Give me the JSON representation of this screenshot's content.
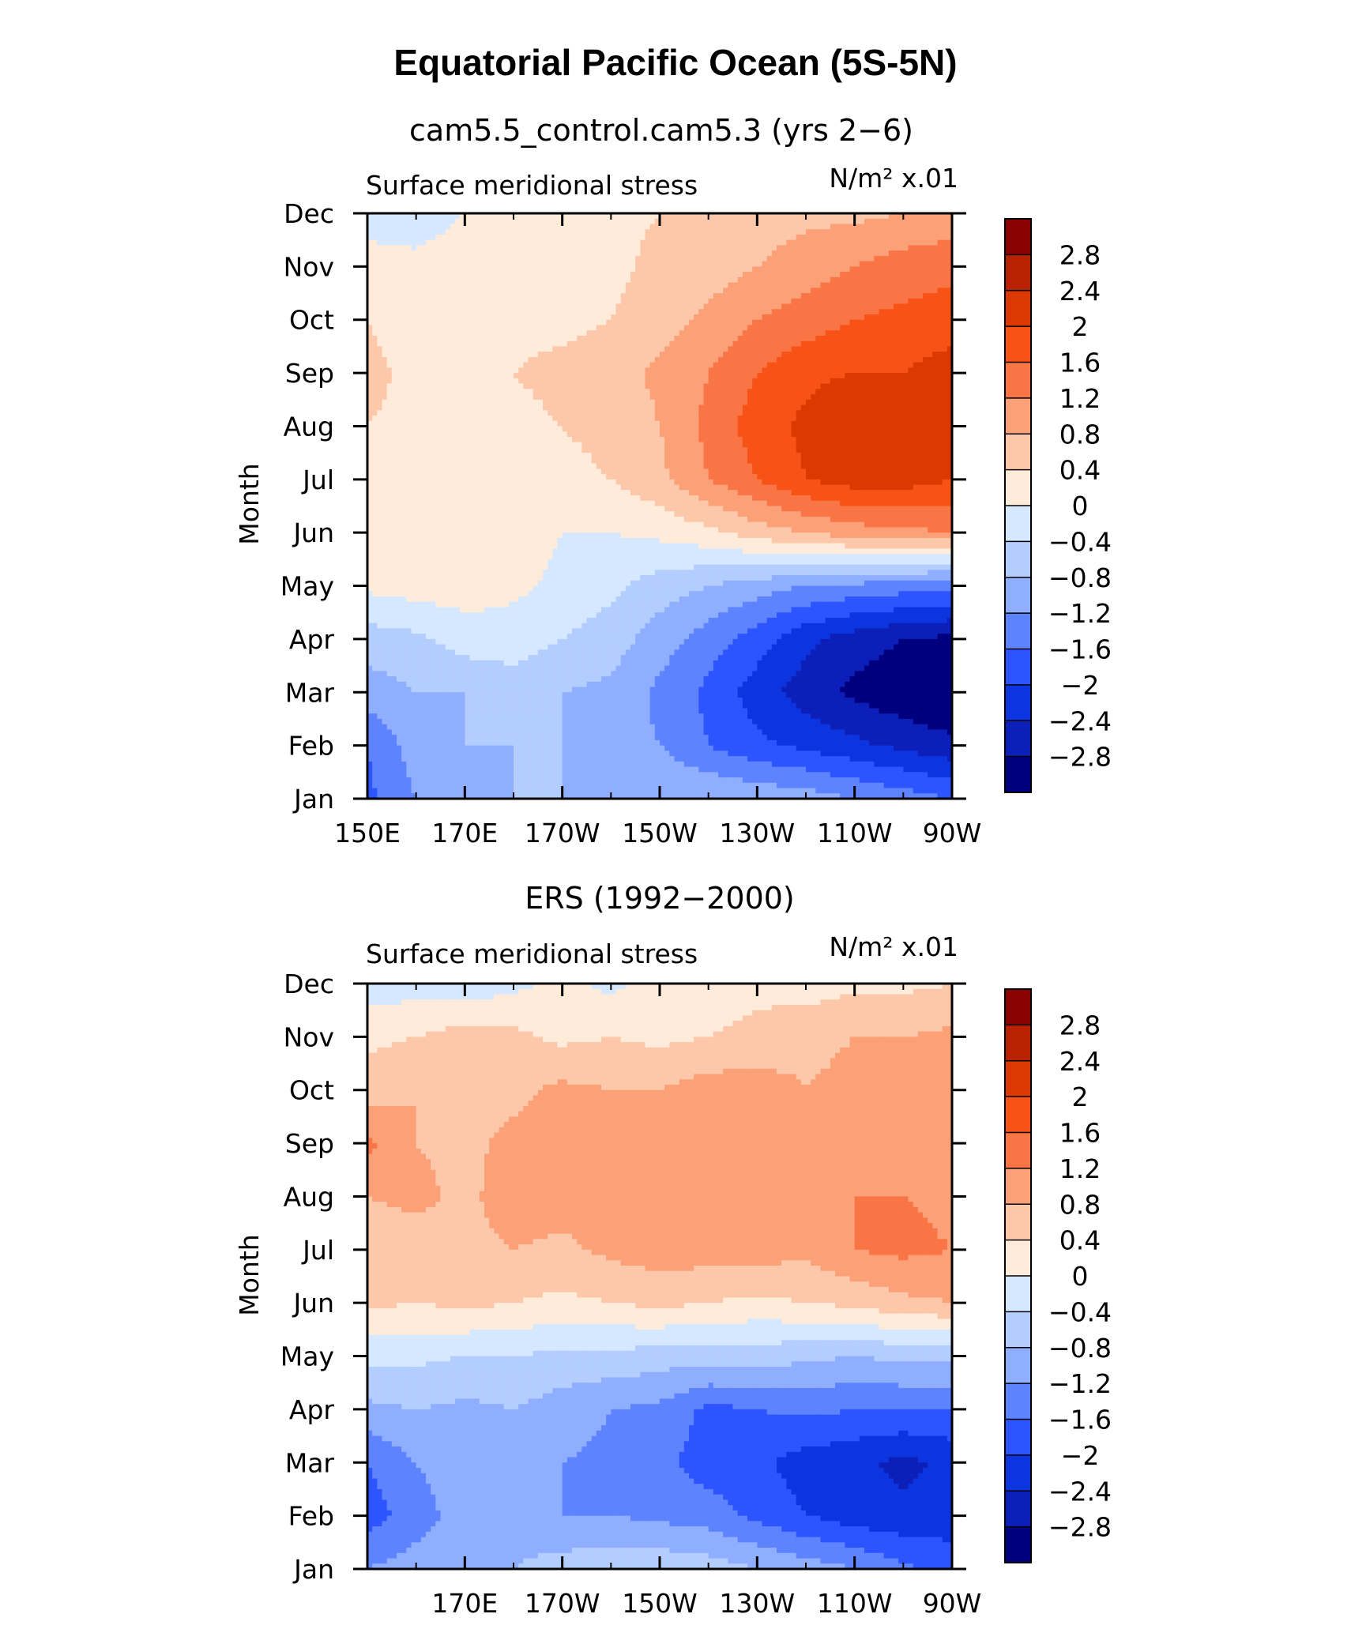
{
  "main_title": "Equatorial Pacific Ocean (5S-5N)",
  "chart_data": [
    {
      "type": "heatmap",
      "id": "model",
      "title": "cam5.5_control.cam5.3 (yrs 2−6)",
      "left_label": "Surface meridional stress",
      "right_label": "N/m² x.01",
      "ylabel": "Month",
      "xlabel": "",
      "x_tick_labels": [
        "150E",
        "170E",
        "170W",
        "150W",
        "130W",
        "110W",
        "90W"
      ],
      "x": [
        150,
        160,
        170,
        180,
        190,
        200,
        210,
        220,
        230,
        240,
        250,
        260,
        270
      ],
      "xlim": [
        150,
        270
      ],
      "y": [
        "Jan",
        "Feb",
        "Mar",
        "Apr",
        "May",
        "Jun",
        "Jul",
        "Aug",
        "Sep",
        "Oct",
        "Nov",
        "Dec"
      ],
      "values": [
        [
          -1.7,
          -1.2,
          -0.9,
          -0.8,
          -0.8,
          -0.8,
          -0.8,
          -0.8,
          -0.9,
          -1.0,
          -1.2,
          -1.4,
          -1.6
        ],
        [
          -1.6,
          -1.0,
          -0.8,
          -0.8,
          -0.8,
          -1.0,
          -1.2,
          -1.6,
          -1.9,
          -2.1,
          -2.3,
          -2.5,
          -2.7
        ],
        [
          -1.0,
          -0.8,
          -0.8,
          -0.6,
          -0.8,
          -0.9,
          -1.3,
          -1.7,
          -2.2,
          -2.6,
          -2.9,
          -3.1,
          -3.2
        ],
        [
          -0.6,
          -0.5,
          -0.2,
          -0.2,
          -0.4,
          -0.6,
          -1.0,
          -1.4,
          -1.8,
          -2.3,
          -2.6,
          -2.8,
          -2.9
        ],
        [
          0.1,
          0.2,
          0.2,
          0.1,
          -0.1,
          -0.3,
          -0.6,
          -0.8,
          -1.0,
          -1.2,
          -1.3,
          -1.4,
          -1.5
        ],
        [
          0.3,
          0.3,
          0.3,
          0.2,
          0.0,
          0.0,
          0.1,
          0.3,
          0.6,
          0.8,
          1.0,
          1.1,
          1.2
        ],
        [
          0.4,
          0.3,
          0.3,
          0.3,
          0.3,
          0.4,
          0.7,
          1.2,
          1.6,
          2.0,
          2.2,
          2.2,
          2.0
        ],
        [
          0.4,
          0.3,
          0.3,
          0.3,
          0.4,
          0.5,
          0.8,
          1.3,
          1.8,
          2.1,
          2.4,
          2.3,
          2.0
        ],
        [
          0.5,
          0.3,
          0.2,
          0.4,
          0.5,
          0.6,
          0.9,
          1.2,
          1.6,
          1.9,
          2.0,
          2.0,
          2.2
        ],
        [
          0.4,
          0.2,
          0.2,
          0.3,
          0.3,
          0.4,
          0.6,
          0.9,
          1.2,
          1.4,
          1.6,
          1.7,
          1.8
        ],
        [
          0.1,
          0.1,
          0.2,
          0.2,
          0.2,
          0.3,
          0.5,
          0.6,
          0.8,
          1.0,
          1.2,
          1.4,
          1.5
        ],
        [
          -0.1,
          -0.2,
          0.0,
          0.1,
          0.2,
          0.3,
          0.4,
          0.5,
          0.6,
          0.7,
          0.7,
          0.8,
          0.9
        ]
      ]
    },
    {
      "type": "heatmap",
      "id": "obs",
      "title": "ERS (1992−2000)",
      "left_label": "Surface meridional stress",
      "right_label": "N/m² x.01",
      "ylabel": "Month",
      "xlabel": "",
      "x_tick_labels": [
        "170E",
        "170W",
        "150W",
        "130W",
        "110W",
        "90W"
      ],
      "x": [
        150,
        160,
        170,
        180,
        190,
        200,
        210,
        220,
        230,
        240,
        250,
        260,
        270
      ],
      "xlim": [
        150,
        270
      ],
      "y": [
        "Jan",
        "Feb",
        "Mar",
        "Apr",
        "May",
        "Jun",
        "Jul",
        "Aug",
        "Sep",
        "Oct",
        "Nov",
        "Dec"
      ],
      "values": [
        [
          -1.2,
          -1.0,
          -0.9,
          -0.8,
          -0.6,
          -0.5,
          -0.5,
          -0.6,
          -0.8,
          -1.0,
          -1.2,
          -1.5,
          -1.8
        ],
        [
          -1.8,
          -1.4,
          -1.0,
          -1.0,
          -1.2,
          -1.2,
          -1.3,
          -1.4,
          -1.7,
          -2.0,
          -2.2,
          -2.3,
          -2.2
        ],
        [
          -1.6,
          -1.2,
          -0.9,
          -0.9,
          -1.2,
          -1.3,
          -1.5,
          -1.8,
          -1.9,
          -2.2,
          -2.3,
          -2.5,
          -2.3
        ],
        [
          -0.9,
          -0.8,
          -0.9,
          -0.8,
          -1.0,
          -1.2,
          -1.3,
          -1.7,
          -1.6,
          -1.5,
          -1.6,
          -1.6,
          -1.6
        ],
        [
          -0.3,
          -0.3,
          -0.4,
          -0.4,
          -0.5,
          -0.5,
          -0.6,
          -0.6,
          -0.6,
          -0.7,
          -0.8,
          -0.7,
          -0.7
        ],
        [
          0.5,
          0.4,
          0.5,
          0.4,
          0.3,
          0.4,
          0.5,
          0.4,
          0.3,
          0.4,
          0.5,
          0.7,
          0.8
        ],
        [
          0.6,
          0.6,
          0.7,
          0.8,
          0.7,
          0.9,
          1.0,
          1.0,
          1.0,
          0.9,
          1.2,
          1.3,
          1.2
        ],
        [
          0.8,
          0.9,
          0.7,
          1.0,
          1.0,
          1.0,
          1.1,
          1.1,
          1.0,
          0.9,
          1.2,
          1.2,
          1.1
        ],
        [
          1.3,
          0.8,
          0.7,
          0.9,
          1.0,
          1.1,
          1.0,
          1.0,
          1.1,
          0.8,
          1.0,
          1.0,
          1.2
        ],
        [
          0.6,
          0.8,
          0.6,
          0.7,
          0.9,
          0.8,
          0.8,
          1.0,
          1.0,
          0.8,
          0.9,
          1.0,
          1.2
        ],
        [
          0.3,
          0.4,
          0.6,
          0.5,
          0.3,
          0.4,
          0.3,
          0.4,
          0.5,
          0.7,
          0.8,
          0.8,
          0.9
        ],
        [
          -0.2,
          -0.2,
          -0.3,
          -0.1,
          0.1,
          -0.1,
          0.2,
          0.2,
          0.3,
          0.2,
          0.3,
          0.3,
          0.4
        ]
      ]
    }
  ],
  "colorbar": {
    "labels": [
      "2.8",
      "2.4",
      "2",
      "1.6",
      "1.2",
      "0.8",
      "0.4",
      "0",
      "−0.4",
      "−0.8",
      "−1.2",
      "−1.6",
      "−2",
      "−2.4",
      "−2.8"
    ],
    "levels": [
      2.8,
      2.4,
      2.0,
      1.6,
      1.2,
      0.8,
      0.4,
      0.0,
      -0.4,
      -0.8,
      -1.2,
      -1.6,
      -2.0,
      -2.4,
      -2.8
    ],
    "colors": [
      "#8B0000",
      "#B82200",
      "#DC3900",
      "#F85316",
      "#FA7546",
      "#FCA078",
      "#FDC8AA",
      "#FFEBDA",
      "#D5E8FF",
      "#B3CDFF",
      "#8FAEFF",
      "#5D83FF",
      "#2D55FF",
      "#0C35E0",
      "#0C1FB8",
      "#00007F"
    ]
  }
}
